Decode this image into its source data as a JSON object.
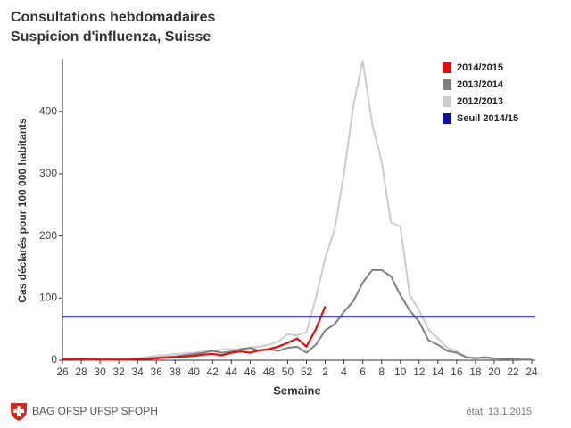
{
  "chart_data": {
    "type": "line",
    "title": "Consultations hebdomadaires",
    "subtitle": "Suspicion d'influenza, Suisse",
    "ylabel": "Cas déclarés pour 100 000 habitants",
    "xlabel": "Semaine",
    "categories": [
      "26",
      null,
      "28",
      null,
      "30",
      null,
      "32",
      null,
      "34",
      null,
      "36",
      null,
      "38",
      null,
      "40",
      null,
      "42",
      null,
      "44",
      null,
      "46",
      null,
      "48",
      null,
      "50",
      null,
      "52",
      null,
      "2",
      null,
      "4",
      null,
      "6",
      null,
      "8",
      null,
      "10",
      null,
      "12",
      null,
      "14",
      null,
      "16",
      null,
      "18",
      null,
      "20",
      null,
      "22",
      null,
      "24"
    ],
    "series": [
      {
        "name": "2014/2015",
        "color": "#e01010",
        "width": 2.2,
        "values": [
          2,
          2,
          2,
          2,
          1,
          1,
          1,
          1,
          2,
          2,
          3,
          4,
          5,
          6,
          7,
          9,
          10,
          8,
          12,
          14,
          12,
          16,
          18,
          22,
          28,
          35,
          22,
          50,
          87,
          null,
          null,
          null,
          null,
          null,
          null,
          null,
          null,
          null,
          null,
          null,
          null,
          null,
          null,
          null,
          null,
          null,
          null,
          null,
          null,
          null,
          null
        ]
      },
      {
        "name": "2013/2014",
        "color": "#808080",
        "width": 2,
        "values": [
          2,
          2,
          2,
          1,
          1,
          1,
          1,
          1,
          2,
          3,
          4,
          5,
          6,
          8,
          10,
          12,
          15,
          12,
          14,
          18,
          20,
          15,
          18,
          15,
          20,
          22,
          12,
          25,
          48,
          58,
          78,
          95,
          125,
          145,
          145,
          135,
          105,
          80,
          62,
          32,
          25,
          15,
          12,
          5,
          3,
          5,
          3,
          2,
          2,
          1,
          1
        ]
      },
      {
        "name": "2012/2013",
        "color": "#cccccc",
        "width": 2,
        "values": [
          3,
          2,
          2,
          2,
          2,
          1,
          1,
          2,
          3,
          5,
          7,
          8,
          10,
          11,
          12,
          14,
          15,
          17,
          18,
          16,
          20,
          22,
          25,
          30,
          42,
          40,
          45,
          100,
          165,
          210,
          300,
          410,
          482,
          380,
          320,
          222,
          215,
          105,
          80,
          50,
          35,
          20,
          15,
          5,
          4,
          3,
          2,
          2,
          2,
          1,
          1
        ]
      }
    ],
    "threshold": {
      "name": "Seuil 2014/15",
      "color": "#1010a0",
      "value": 70
    },
    "ylim": [
      0,
      485
    ],
    "yticks": [
      0,
      100,
      200,
      300,
      400
    ],
    "footer": "BAG OFSP UFSP SFOPH",
    "date": "état: 13.1.2015"
  }
}
